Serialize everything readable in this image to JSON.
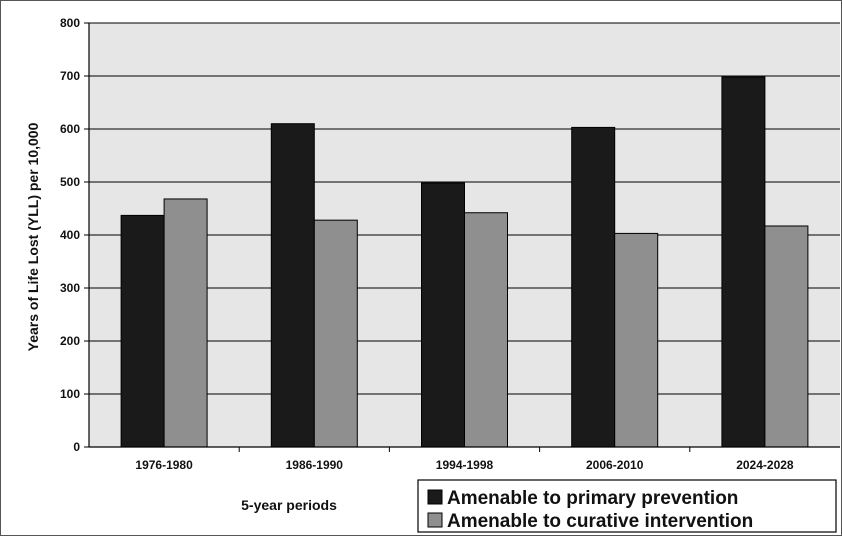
{
  "chart_data": {
    "type": "bar",
    "categories": [
      "1976-1980",
      "1986-1990",
      "1994-1998",
      "2006-2010",
      "2024-2028"
    ],
    "series": [
      {
        "name": "Amenable to primary prevention",
        "values": [
          437,
          610,
          498,
          603,
          698
        ],
        "color": "#1a1a1a"
      },
      {
        "name": "Amenable to curative intervention",
        "values": [
          468,
          428,
          442,
          403,
          417
        ],
        "color": "#8f8f8f"
      }
    ],
    "title": "",
    "xlabel": "5-year periods",
    "ylabel": "Years of Life Lost (YLL) per 10,000",
    "ylim": [
      0,
      800
    ],
    "yticks": [
      0,
      100,
      200,
      300,
      400,
      500,
      600,
      700,
      800
    ],
    "grid": true,
    "legend_position": "bottom-right",
    "plot_background": "#e6e6e6"
  }
}
